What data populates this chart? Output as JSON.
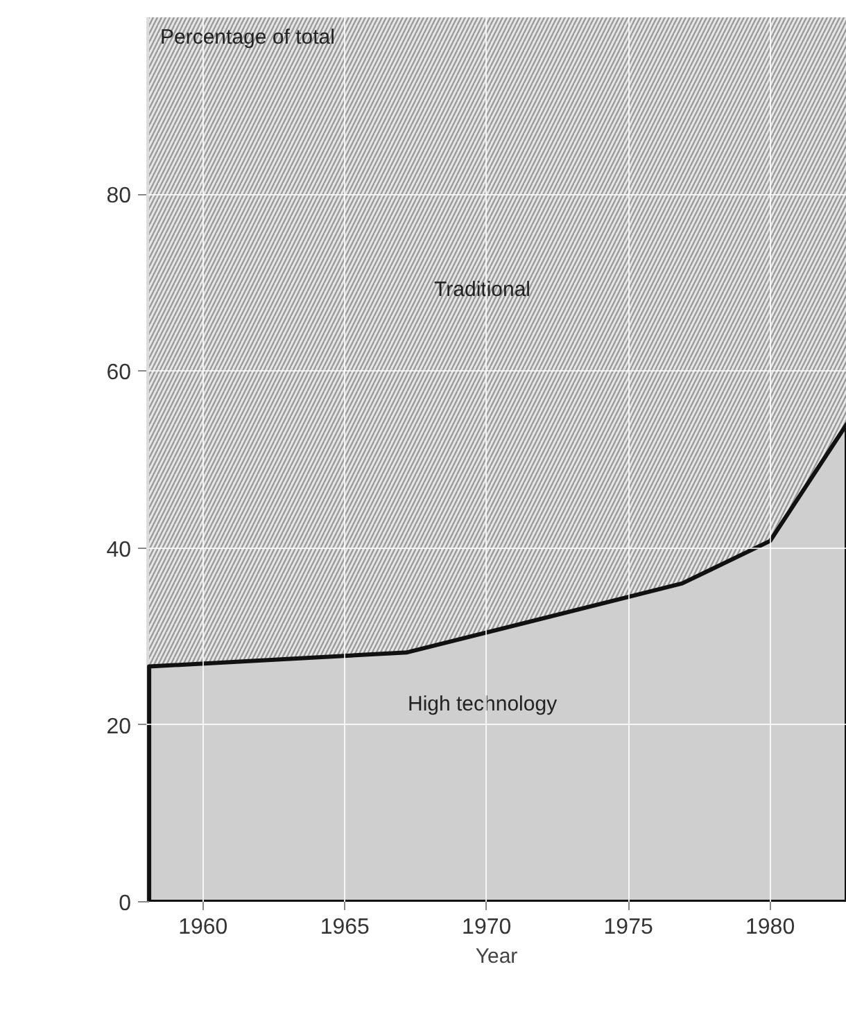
{
  "chart_data": {
    "type": "area",
    "stacked": true,
    "ylabel": "Percentage of total",
    "xlabel": "Year",
    "x": [
      1958.1,
      1967.2,
      1976.9,
      1980,
      1982.7
    ],
    "series": [
      {
        "name": "High technology",
        "color": "#cfcfcf",
        "values": [
          26.6,
          28.2,
          36,
          40.8,
          54
        ]
      },
      {
        "name": "Traditional",
        "color": "#e6e6e6",
        "values": [
          73.4,
          71.8,
          64,
          59.2,
          46
        ]
      }
    ],
    "xlim": [
      1958,
      1982.7
    ],
    "ylim": [
      0,
      100
    ],
    "xticks": [
      1960,
      1965,
      1970,
      1975,
      1980
    ],
    "yticks": [
      0,
      20,
      40,
      60,
      80
    ],
    "grid": true
  }
}
